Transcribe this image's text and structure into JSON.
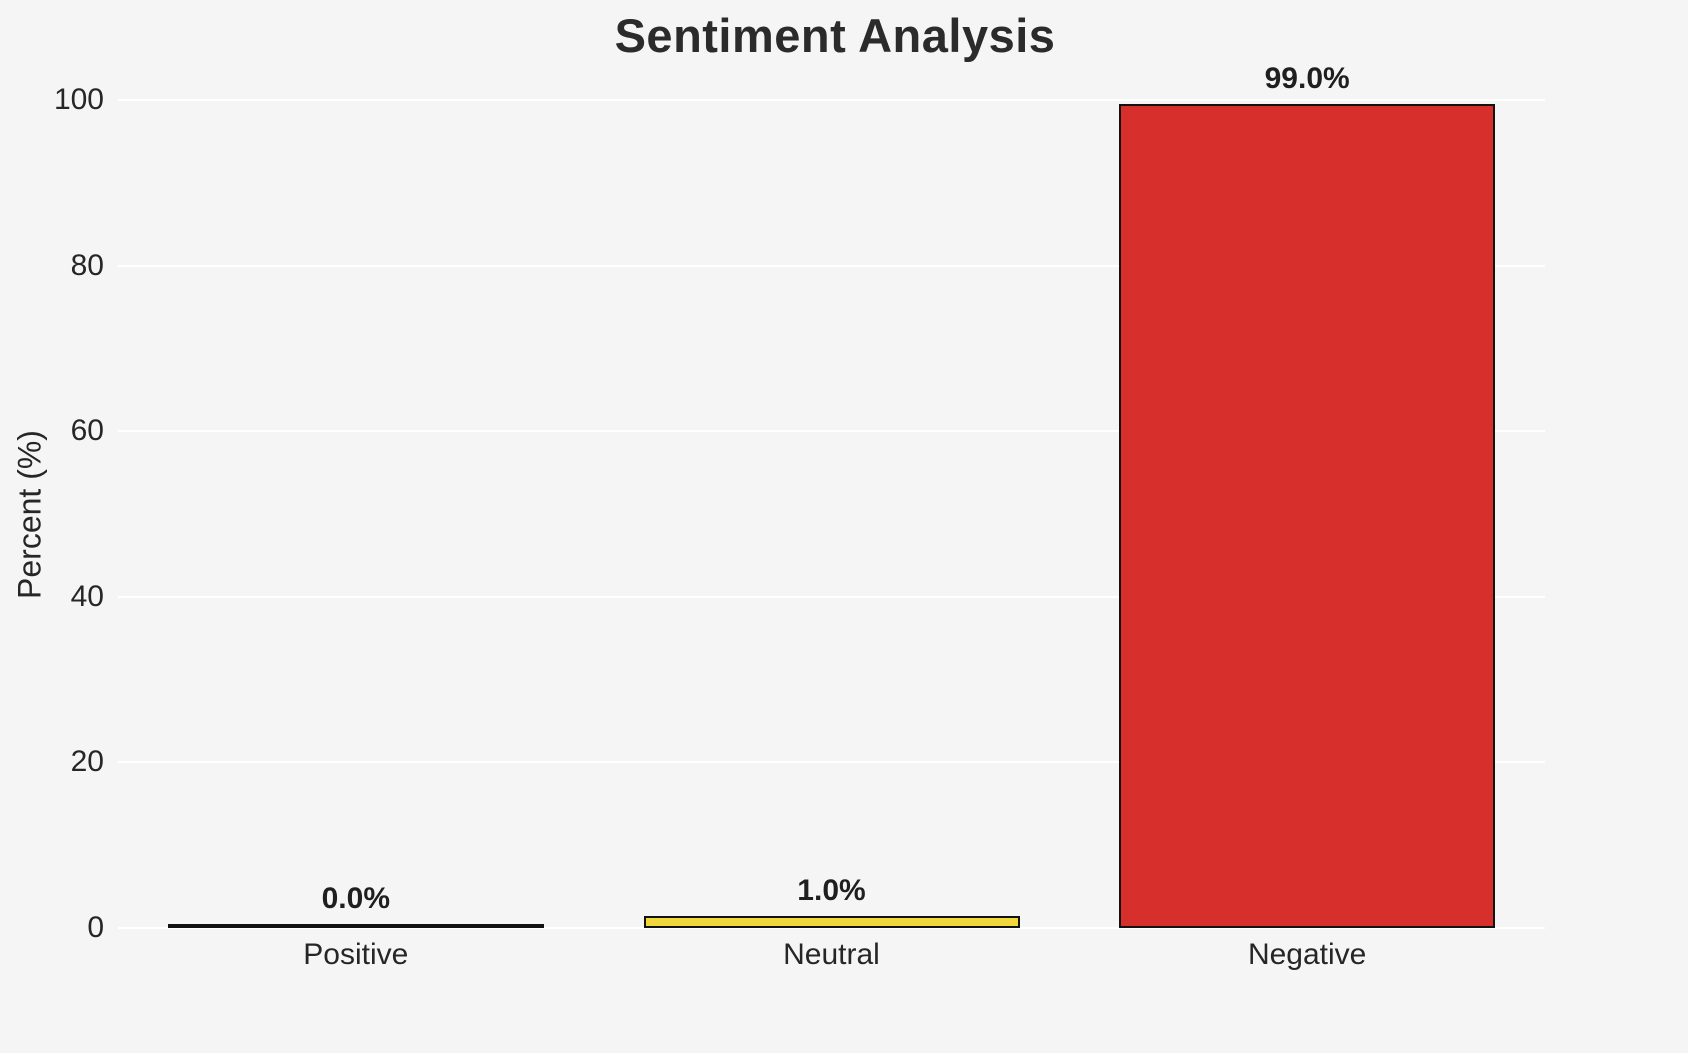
{
  "chart_data": {
    "type": "bar",
    "title": "Sentiment Analysis",
    "xlabel": "",
    "ylabel": "Percent (%)",
    "categories": [
      "Positive",
      "Neutral",
      "Negative"
    ],
    "values": [
      0.0,
      1.0,
      99.0
    ],
    "value_labels": [
      "0.0%",
      "1.0%",
      "99.0%"
    ],
    "bar_colors": [
      "#f5f5f6",
      "#f1d93c",
      "#d62f2c"
    ],
    "bar_edge_color": "#121212",
    "ylim": [
      0,
      104
    ],
    "yticks": [
      0,
      20,
      40,
      60,
      80,
      100
    ],
    "grid": true,
    "legend": "none",
    "background_color": "#f5f5f6",
    "grid_color": "#ffffff",
    "text_color": "#262626"
  }
}
